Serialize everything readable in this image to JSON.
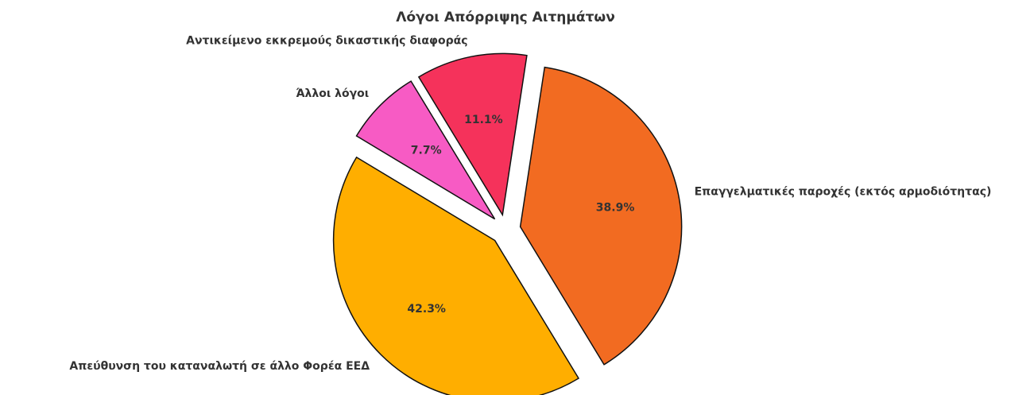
{
  "chart_data": {
    "type": "pie",
    "title": "Λόγοι Απόρριψης Αιτημάτων",
    "categories": [
      "Απεύθυνση του καταναλωτή σε άλλο Φορέα ΕΕΔ",
      "Επαγγελματικές παροχές (εκτός αρμοδιότητας)",
      "Αντικείμενο εκκρεμούς δικαστικής διαφοράς",
      "Άλλοι λόγοι"
    ],
    "values": [
      42.3,
      38.9,
      11.1,
      7.7
    ],
    "value_labels": [
      "42.3%",
      "38.9%",
      "11.1%",
      "7.7%"
    ],
    "colors": [
      "#ffae00",
      "#f26b21",
      "#f5325b",
      "#f75bc4"
    ]
  }
}
